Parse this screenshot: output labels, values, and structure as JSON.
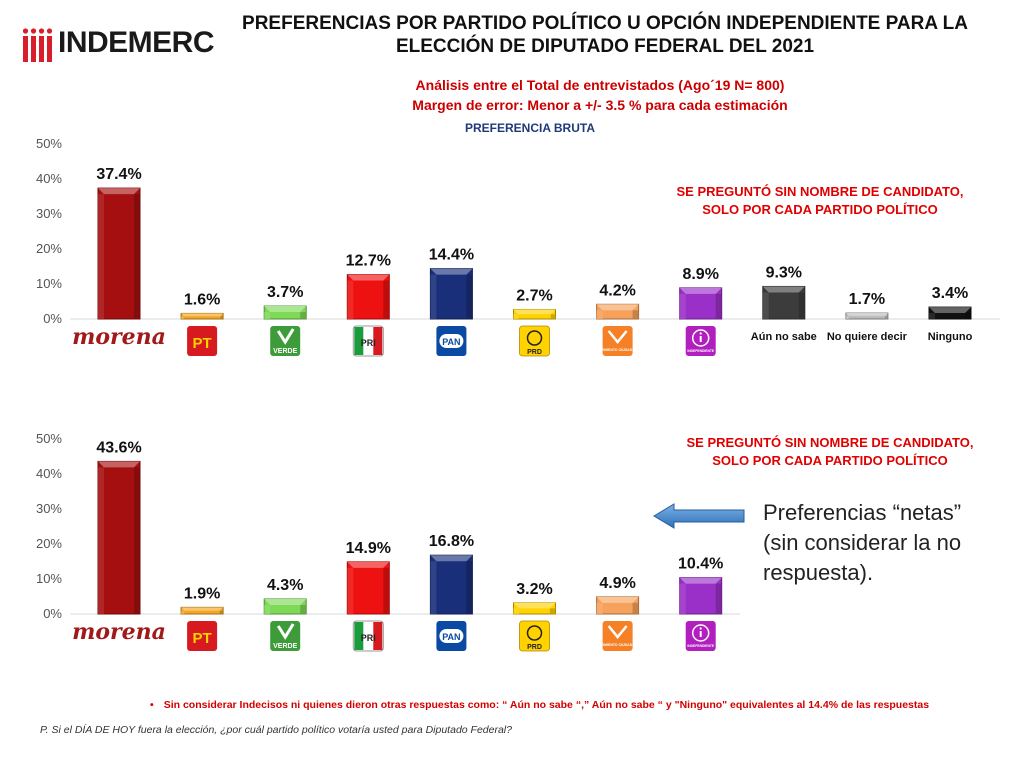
{
  "header": {
    "logo_text": "INDEMERC",
    "title_line1": "PREFERENCIAS POR PARTIDO POLÍTICO U OPCIÓN INDEPENDIENTE PARA LA",
    "title_line2": "ELECCIÓN DE DIPUTADO FEDERAL DEL 2021",
    "subtitle_line1": "Análisis entre el Total de entrevistados (Ago´19 N= 800)",
    "subtitle_line2": "Margen de error: Menor a +/- 3.5 %  para cada estimación",
    "preferencia_label": "PREFERENCIA BRUTA"
  },
  "colors": {
    "morena": "#a50f0f",
    "pt": "#f5a623",
    "verde": "#7ed957",
    "pri": "#ee1111",
    "pan": "#1a2f7a",
    "prd": "#ffd200",
    "mc": "#f7a25c",
    "independiente": "#9b30c8",
    "aun_no_sabe": "#3c3c3c",
    "no_quiere_decir": "#bcbcbc",
    "ninguno": "#111111"
  },
  "icons": {
    "pt": "PT",
    "verde": "VERDE",
    "pri": "PRI",
    "pan": "PAN",
    "prd": "PRD",
    "mc": "MOVIMIENTO CIUDADANO",
    "independiente": "INDEPENDIENTE"
  },
  "chart_data": [
    {
      "type": "bar",
      "title": "PREFERENCIA BRUTA",
      "categories": [
        "morena",
        "PT",
        "VERDE",
        "PRI",
        "PAN",
        "PRD",
        "MOVIMIENTO CIUDADANO",
        "INDEPENDIENTE",
        "Aún no sabe",
        "No quiere decir",
        "Ninguno"
      ],
      "values": [
        37.4,
        1.6,
        3.7,
        12.7,
        14.4,
        2.7,
        4.2,
        8.9,
        9.3,
        1.7,
        3.4
      ],
      "value_labels": [
        "37.4%",
        "1.6%",
        "3.7%",
        "12.7%",
        "14.4%",
        "2.7%",
        "4.2%",
        "8.9%",
        "9.3%",
        "1.7%",
        "3.4%"
      ],
      "yticks": [
        "0%",
        "10%",
        "20%",
        "30%",
        "40%",
        "50%"
      ],
      "ylim": [
        0,
        50
      ],
      "annotation_line1": "SE PREGUNTÓ SIN NOMBRE DE CANDIDATO,",
      "annotation_line2": "SOLO POR CADA PARTIDO POLÍTICO"
    },
    {
      "type": "bar",
      "title": "Preferencias netas",
      "categories": [
        "morena",
        "PT",
        "VERDE",
        "PRI",
        "PAN",
        "PRD",
        "MOVIMIENTO CIUDADANO",
        "INDEPENDIENTE"
      ],
      "values": [
        43.6,
        1.9,
        4.3,
        14.9,
        16.8,
        3.2,
        4.9,
        10.4
      ],
      "value_labels": [
        "43.6%",
        "1.9%",
        "4.3%",
        "14.9%",
        "16.8%",
        "3.2%",
        "4.9%",
        "10.4%"
      ],
      "yticks": [
        "0%",
        "10%",
        "20%",
        "30%",
        "40%",
        "50%"
      ],
      "ylim": [
        0,
        50
      ],
      "annotation_line1": "SE PREGUNTÓ SIN NOMBRE DE CANDIDATO,",
      "annotation_line2": "SOLO POR CADA PARTIDO POLÍTICO"
    }
  ],
  "side_note": {
    "line1": "Preferencias “netas”",
    "line2": "(sin considerar la no",
    "line3": "respuesta)."
  },
  "footer": {
    "bullet": "•",
    "footnote": "Sin considerar Indecisos ni quienes dieron otras respuestas como:   “ Aún no sabe “,” Aún no sabe “ y \"Ninguno\"    equivalentes al 14.4% de las respuestas",
    "question": "P. Si el DÍA DE HOY fuera la elección, ¿por cuál partido político votaría usted para Diputado Federal?"
  }
}
